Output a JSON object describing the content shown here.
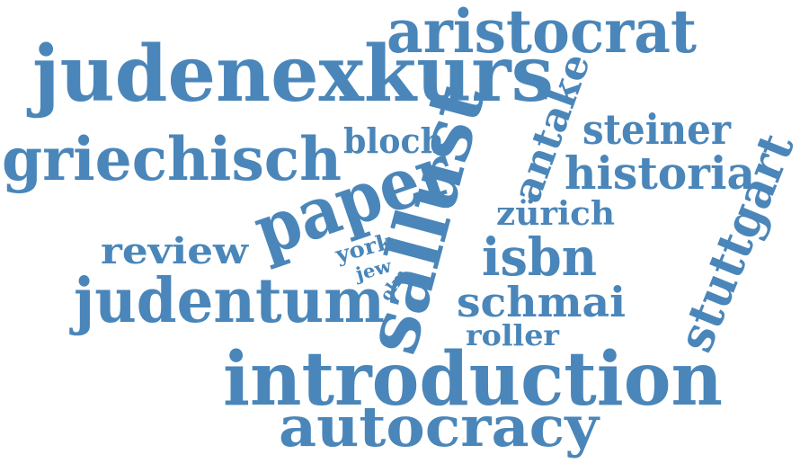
{
  "words": [
    {
      "text": "judenexkurs"
    },
    {
      "text": "aristocrat"
    },
    {
      "text": "griechisch"
    },
    {
      "text": "paper"
    },
    {
      "text": "sallust"
    },
    {
      "text": "antake"
    },
    {
      "text": "steiner"
    },
    {
      "text": "historia"
    },
    {
      "text": "stuttgart"
    },
    {
      "text": "bloch"
    },
    {
      "text": "zürich"
    },
    {
      "text": "review"
    },
    {
      "text": "york"
    },
    {
      "text": "jew"
    },
    {
      "text": "olm"
    },
    {
      "text": "isbn"
    },
    {
      "text": "judentum"
    },
    {
      "text": "schmai"
    },
    {
      "text": "roller"
    },
    {
      "text": "introduction"
    },
    {
      "text": "autocracy"
    }
  ],
  "colors": {
    "word": "#4a86b9",
    "background": "#ffffff"
  }
}
